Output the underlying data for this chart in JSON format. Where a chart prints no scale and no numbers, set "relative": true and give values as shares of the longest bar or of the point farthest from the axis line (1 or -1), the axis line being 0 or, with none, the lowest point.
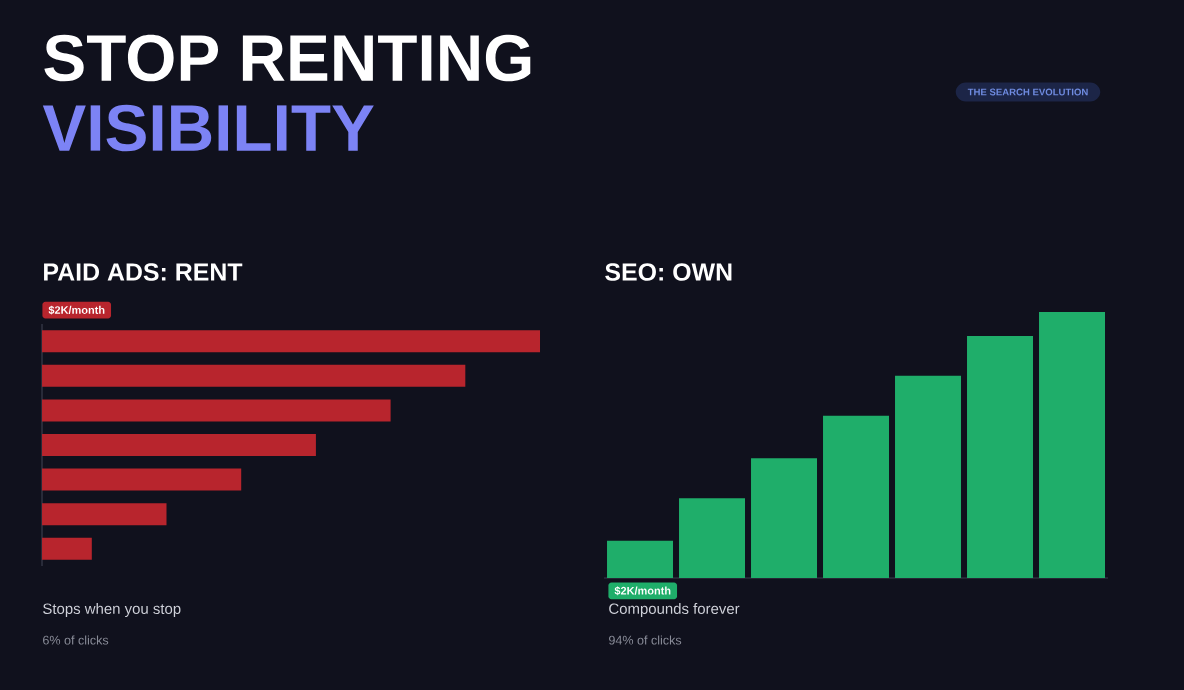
{
  "chart_data": [
    {
      "type": "other",
      "title": "STOP RENTING",
      "subtitle": "VISIBILITY",
      "annotations": [
        "THE SEARCH EVOLUTION"
      ]
    },
    {
      "type": "bar",
      "orientation": "horizontal",
      "relative": true,
      "title": "PAID ADS: RENT",
      "categories": [
        null,
        null,
        null,
        null,
        null,
        null,
        null
      ],
      "values": [
        1,
        0.85,
        0.7,
        0.55,
        0.4,
        0.25,
        0.1
      ],
      "color": "#b8252d",
      "annotations": [
        "$2K/month",
        "Stops when you stop",
        "6% of clicks"
      ]
    },
    {
      "type": "bar",
      "relative": true,
      "title": "SEO: OWN",
      "categories": [
        null,
        null,
        null,
        null,
        null,
        null,
        null
      ],
      "values": [
        0.14,
        0.3,
        0.45,
        0.61,
        0.76,
        0.91,
        1
      ],
      "color": "#1fae6a",
      "annotations": [
        "$2K/month",
        "Compounds forever",
        "94% of clicks"
      ]
    }
  ]
}
